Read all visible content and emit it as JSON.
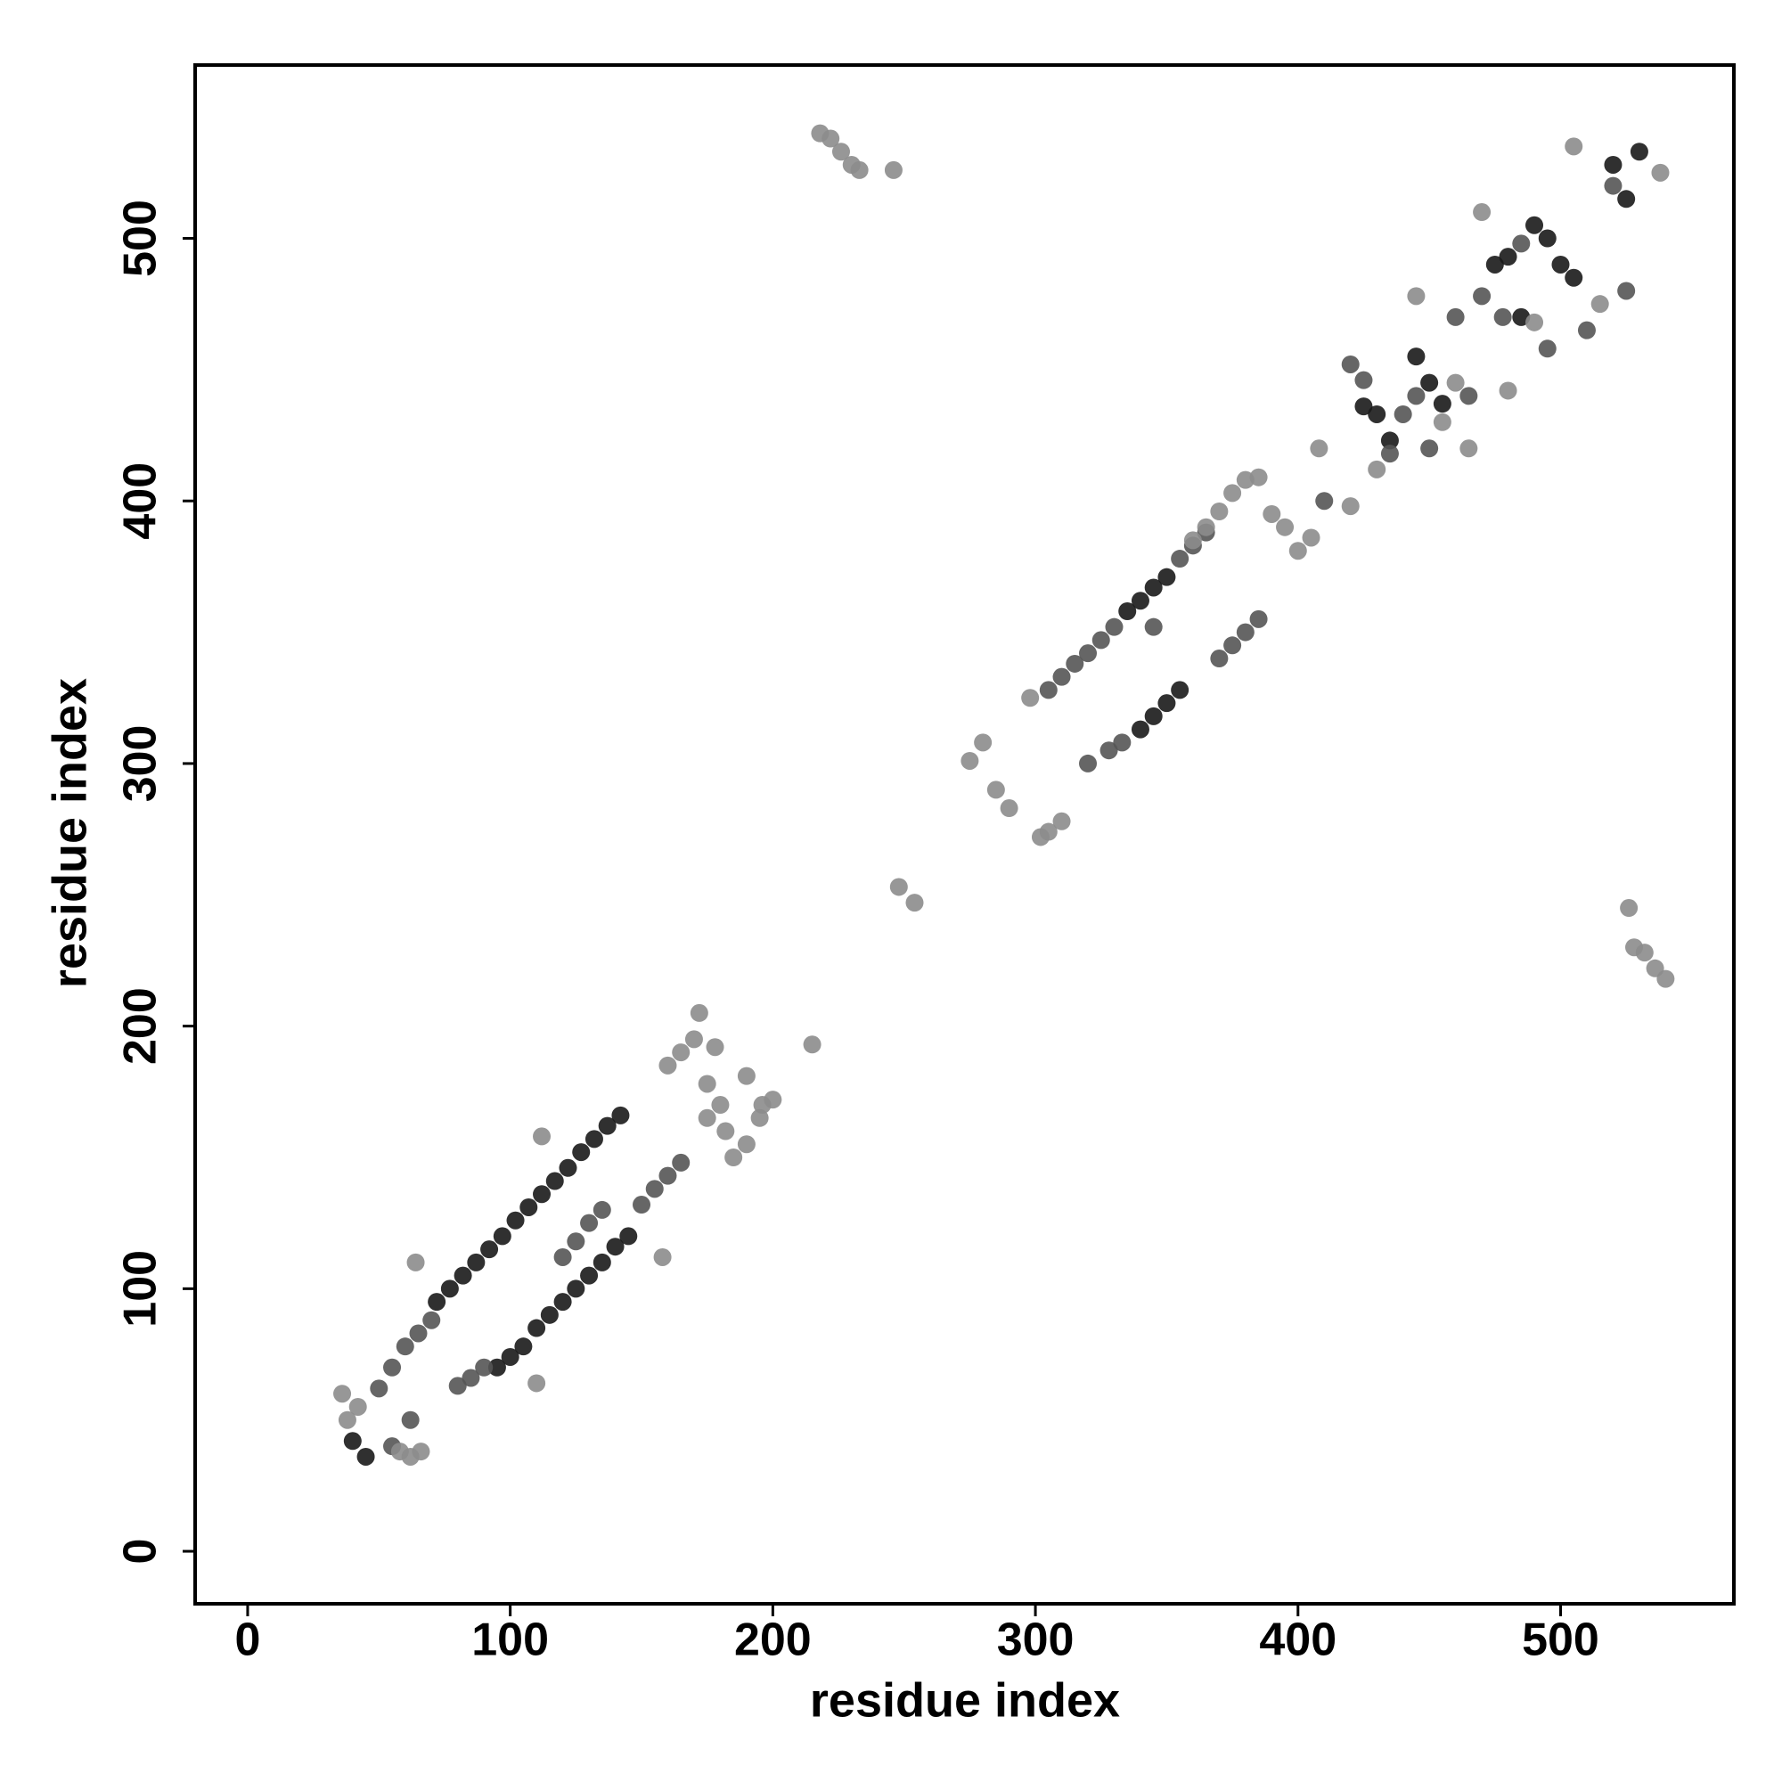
{
  "chart_data": {
    "type": "scatter",
    "x_label": "residue index",
    "y_label": "residue index",
    "xlim": [
      -20,
      566
    ],
    "ylim": [
      -20,
      566
    ],
    "xticks": [
      0,
      100,
      200,
      300,
      400,
      500
    ],
    "yticks": [
      0,
      100,
      200,
      300,
      400,
      500
    ],
    "grid": false,
    "series": [
      {
        "color": "#1a1a1a",
        "x": [
          40,
          45,
          72,
          77,
          82,
          87,
          92,
          97,
          102,
          107,
          112,
          117,
          122,
          127,
          132,
          137,
          142,
          95,
          100,
          105,
          110,
          115,
          120,
          125,
          130,
          135,
          140,
          145,
          335,
          340,
          345,
          350,
          340,
          345,
          350,
          355,
          425,
          430,
          435,
          445,
          450,
          455,
          475,
          480,
          485,
          490,
          495,
          500,
          505,
          520,
          525,
          530
        ],
        "y": [
          42,
          36,
          95,
          100,
          105,
          110,
          115,
          120,
          126,
          131,
          136,
          141,
          146,
          152,
          157,
          162,
          166,
          70,
          74,
          78,
          85,
          90,
          95,
          100,
          105,
          110,
          116,
          120,
          358,
          362,
          367,
          371,
          313,
          318,
          323,
          328,
          436,
          433,
          423,
          455,
          445,
          437,
          490,
          493,
          470,
          505,
          500,
          490,
          485,
          528,
          515,
          533
        ]
      },
      {
        "color": "#555555",
        "x": [
          50,
          55,
          60,
          65,
          70,
          55,
          62,
          80,
          85,
          90,
          120,
          125,
          130,
          135,
          150,
          155,
          160,
          165,
          305,
          310,
          315,
          320,
          325,
          330,
          355,
          360,
          365,
          370,
          375,
          380,
          385,
          320,
          328,
          333,
          345,
          410,
          420,
          425,
          440,
          445,
          450,
          460,
          470,
          478,
          485,
          495,
          510,
          520,
          525,
          435,
          465
        ],
        "y": [
          62,
          70,
          78,
          83,
          88,
          40,
          50,
          63,
          66,
          70,
          112,
          118,
          125,
          130,
          132,
          138,
          143,
          148,
          328,
          333,
          338,
          342,
          347,
          352,
          378,
          383,
          388,
          340,
          345,
          350,
          355,
          300,
          305,
          308,
          352,
          400,
          452,
          446,
          433,
          440,
          420,
          470,
          478,
          470,
          498,
          458,
          465,
          520,
          480,
          418,
          440
        ]
      },
      {
        "color": "#8c8c8c",
        "x": [
          36,
          38,
          42,
          58,
          62,
          66,
          64,
          110,
          112,
          158,
          160,
          165,
          170,
          172,
          175,
          178,
          180,
          185,
          190,
          195,
          175,
          182,
          190,
          196,
          200,
          215,
          218,
          222,
          226,
          230,
          233,
          246,
          248,
          254,
          275,
          280,
          285,
          290,
          298,
          302,
          305,
          310,
          360,
          365,
          370,
          375,
          380,
          385,
          390,
          395,
          400,
          405,
          408,
          420,
          430,
          445,
          455,
          460,
          465,
          470,
          480,
          490,
          505,
          515,
          526,
          528,
          532,
          536,
          540,
          538
        ],
        "y": [
          60,
          50,
          55,
          38,
          36,
          38,
          110,
          64,
          158,
          112,
          185,
          190,
          195,
          205,
          178,
          192,
          170,
          150,
          155,
          165,
          165,
          160,
          181,
          170,
          172,
          193,
          540,
          538,
          533,
          528,
          526,
          526,
          253,
          247,
          301,
          308,
          290,
          283,
          325,
          272,
          274,
          278,
          385,
          390,
          396,
          403,
          408,
          409,
          395,
          390,
          381,
          386,
          420,
          398,
          412,
          478,
          430,
          445,
          420,
          510,
          442,
          468,
          535,
          475,
          245,
          230,
          228,
          222,
          218,
          525
        ]
      }
    ]
  }
}
